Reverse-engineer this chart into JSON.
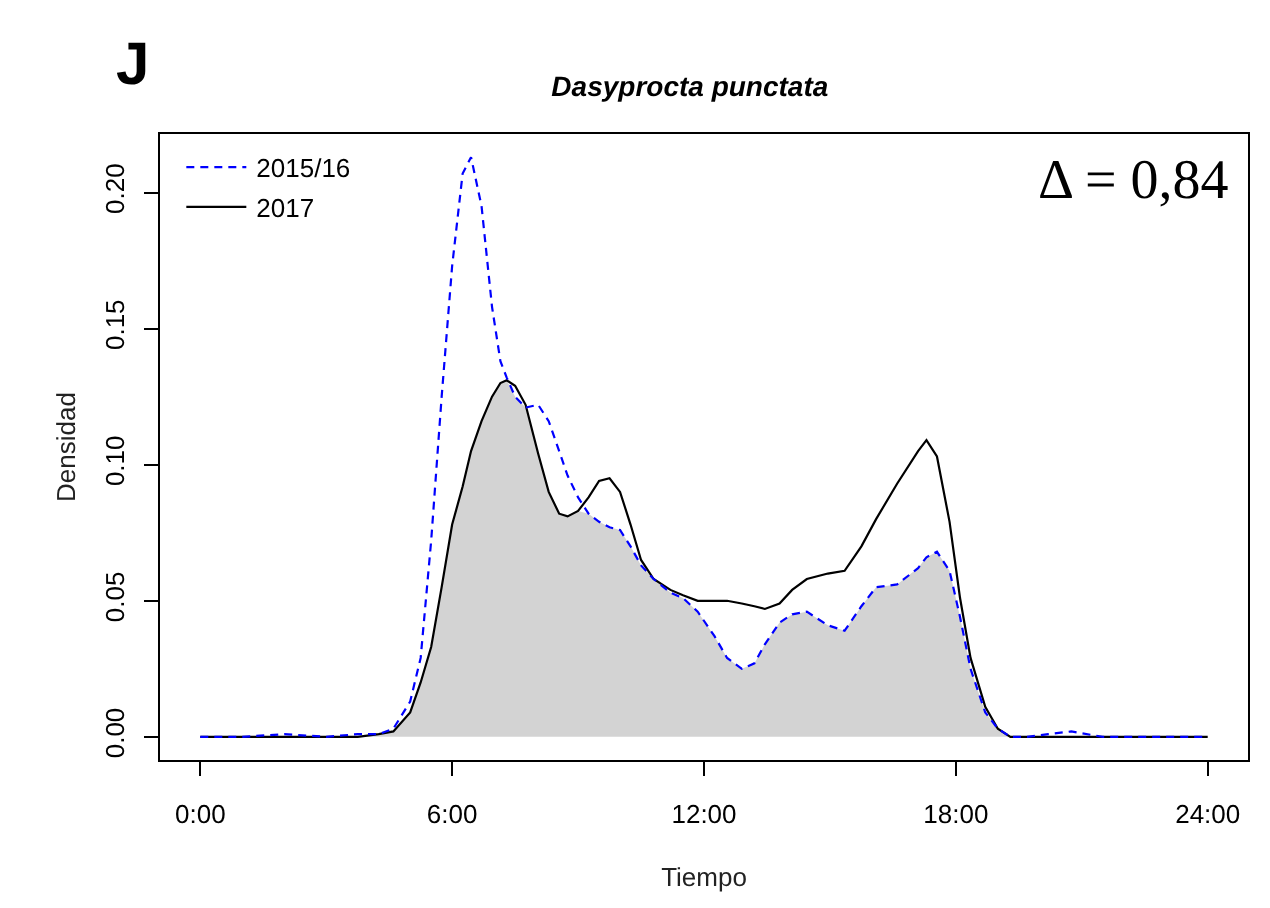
{
  "chart_data": {
    "type": "line",
    "title": "Dasyprocta punctata",
    "xlabel": "Tiempo",
    "ylabel": "Densidad",
    "annotations": [
      "J",
      "Δ = 0,84"
    ],
    "x": [
      0,
      1,
      2,
      3,
      3.75,
      4.25,
      4.6,
      5,
      5.25,
      5.5,
      5.75,
      6,
      6.25,
      6.45,
      6.7,
      6.95,
      7.15,
      7.3,
      7.5,
      7.75,
      8.05,
      8.3,
      8.55,
      8.75,
      9,
      9.25,
      9.5,
      9.75,
      10,
      10.25,
      10.5,
      10.8,
      11.2,
      11.5,
      11.85,
      12.25,
      12.55,
      12.9,
      13.2,
      13.45,
      13.8,
      14.1,
      14.45,
      14.95,
      15.35,
      15.75,
      16.1,
      16.6,
      17.1,
      17.3,
      17.55,
      17.85,
      18.1,
      18.35,
      18.7,
      19,
      19.3,
      19.7,
      20.2,
      20.75,
      21.5,
      22.5,
      24
    ],
    "series": [
      {
        "type": "area",
        "color": "#d3d3d3",
        "x": [
          3.75,
          4.25,
          4.6,
          5,
          5.25,
          5.5,
          5.75,
          6,
          6.25,
          6.45,
          6.7,
          6.95,
          7.15,
          7.3,
          7.5,
          7.75,
          8.05,
          8.3,
          8.55,
          8.75,
          9,
          9.25,
          9.5,
          9.75,
          10,
          10.25,
          10.5,
          10.8,
          11.2,
          11.5,
          11.85,
          12.25,
          12.55,
          12.9,
          13.2,
          13.45,
          13.8,
          14.1,
          14.45,
          14.95,
          15.35,
          15.75,
          16.1,
          16.6,
          17.1,
          17.3,
          17.55,
          17.85,
          18.1,
          18.35,
          18.7,
          19,
          19.3
        ],
        "values": [
          0,
          0.001,
          0.002,
          0.009,
          0.02,
          0.033,
          0.055,
          0.078,
          0.092,
          0.105,
          0.116,
          0.125,
          0.13,
          0.131,
          0.125,
          0.121,
          0.104,
          0.09,
          0.082,
          0.081,
          0.083,
          0.082,
          0.079,
          0.077,
          0.076,
          0.07,
          0.063,
          0.058,
          0.053,
          0.051,
          0.046,
          0.037,
          0.029,
          0.025,
          0.027,
          0.034,
          0.042,
          0.045,
          0.046,
          0.041,
          0.039,
          0.048,
          0.055,
          0.056,
          0.062,
          0.066,
          0.068,
          0.061,
          0.044,
          0.025,
          0.009,
          0.003,
          0
        ]
      },
      {
        "name": "2017",
        "color": "#000000",
        "line_style": "solid",
        "values": [
          0,
          0,
          0,
          0,
          0,
          0.001,
          0.002,
          0.009,
          0.02,
          0.033,
          0.055,
          0.078,
          0.092,
          0.105,
          0.116,
          0.125,
          0.13,
          0.131,
          0.129,
          0.122,
          0.104,
          0.09,
          0.082,
          0.081,
          0.083,
          0.088,
          0.094,
          0.095,
          0.09,
          0.078,
          0.065,
          0.058,
          0.054,
          0.052,
          0.05,
          0.05,
          0.05,
          0.049,
          0.048,
          0.047,
          0.049,
          0.054,
          0.058,
          0.06,
          0.061,
          0.07,
          0.08,
          0.093,
          0.105,
          0.109,
          0.103,
          0.079,
          0.051,
          0.029,
          0.011,
          0.003,
          0,
          0,
          0,
          0,
          0,
          0,
          0
        ]
      },
      {
        "name": "2015/16",
        "color": "#0000ff",
        "line_style": "dashed",
        "values": [
          0,
          0,
          0.001,
          0,
          0.001,
          0.001,
          0.003,
          0.013,
          0.029,
          0.072,
          0.125,
          0.173,
          0.207,
          0.213,
          0.195,
          0.158,
          0.138,
          0.132,
          0.125,
          0.121,
          0.122,
          0.116,
          0.105,
          0.096,
          0.088,
          0.082,
          0.079,
          0.077,
          0.076,
          0.07,
          0.063,
          0.058,
          0.053,
          0.051,
          0.046,
          0.037,
          0.029,
          0.025,
          0.027,
          0.034,
          0.042,
          0.045,
          0.046,
          0.041,
          0.039,
          0.048,
          0.055,
          0.056,
          0.062,
          0.066,
          0.068,
          0.061,
          0.044,
          0.025,
          0.009,
          0.003,
          0,
          0,
          0.001,
          0.002,
          0,
          0,
          0
        ]
      }
    ],
    "xlim": [
      -0.96,
      24.96
    ],
    "xticks": [
      {
        "value": 0,
        "label": "0:00"
      },
      {
        "value": 6,
        "label": "6:00"
      },
      {
        "value": 12,
        "label": "12:00"
      },
      {
        "value": 18,
        "label": "18:00"
      },
      {
        "value": 24,
        "label": "24:00"
      }
    ],
    "ylim": [
      -0.0085,
      0.2215
    ],
    "yticks": [
      {
        "value": 0,
        "label": "0.00"
      },
      {
        "value": 0.05,
        "label": "0.05"
      },
      {
        "value": 0.1,
        "label": "0.10"
      },
      {
        "value": 0.15,
        "label": "0.15"
      },
      {
        "value": 0.2,
        "label": "0.20"
      }
    ],
    "grid": false,
    "legend": "top left"
  }
}
